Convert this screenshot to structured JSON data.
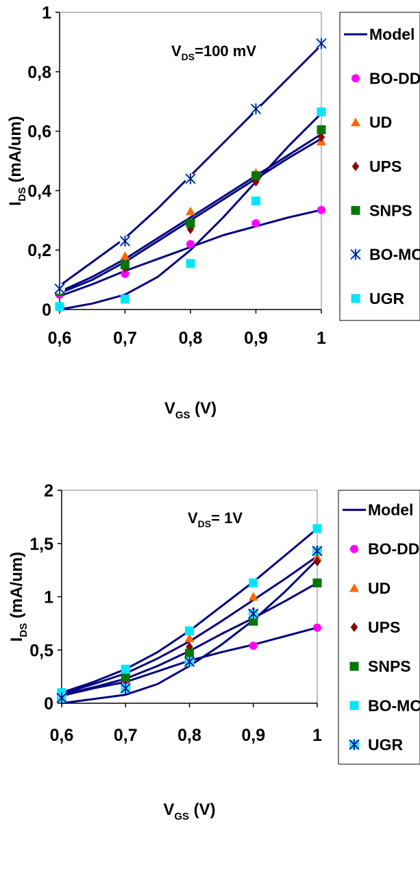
{
  "chart_data": [
    {
      "type": "line",
      "annotation": {
        "main": "V",
        "sub": "DS",
        "rest": "=100 mV"
      },
      "xlabel": {
        "main": "V",
        "sub": "GS",
        "rest": " (V)"
      },
      "ylabel": {
        "main": "I",
        "sub": "DS",
        "rest": " (mA/um)"
      },
      "xlim": [
        0.6,
        1.0
      ],
      "ylim": [
        0,
        1
      ],
      "x_ticks": [
        "0,6",
        "0,7",
        "0,8",
        "0,9",
        "1"
      ],
      "y_ticks": [
        "0",
        "0,2",
        "0,4",
        "0,6",
        "0,8",
        "1"
      ],
      "legend_position": "right",
      "legend": [
        "Model",
        "BO-DD",
        "UD",
        "UPS",
        "SNPS",
        "BO-MC",
        "UGR"
      ],
      "model_curves": [
        {
          "x": [
            0.6,
            0.65,
            0.7,
            0.75,
            0.8,
            0.85,
            0.9,
            0.95,
            1.0
          ],
          "y": [
            0.08,
            0.16,
            0.24,
            0.34,
            0.45,
            0.56,
            0.67,
            0.78,
            0.89
          ]
        },
        {
          "x": [
            0.6,
            0.65,
            0.7,
            0.75,
            0.8,
            0.85,
            0.9,
            0.95,
            1.0
          ],
          "y": [
            0.06,
            0.11,
            0.17,
            0.24,
            0.31,
            0.38,
            0.45,
            0.52,
            0.59
          ]
        },
        {
          "x": [
            0.6,
            0.65,
            0.7,
            0.75,
            0.8,
            0.85,
            0.9,
            0.95,
            1.0
          ],
          "y": [
            0.055,
            0.1,
            0.16,
            0.23,
            0.3,
            0.37,
            0.44,
            0.51,
            0.575
          ]
        },
        {
          "x": [
            0.6,
            0.65,
            0.7,
            0.75,
            0.8,
            0.85,
            0.9,
            0.95,
            1.0
          ],
          "y": [
            0.045,
            0.085,
            0.13,
            0.17,
            0.21,
            0.25,
            0.28,
            0.31,
            0.335
          ]
        },
        {
          "x": [
            0.6,
            0.65,
            0.7,
            0.75,
            0.8,
            0.85,
            0.9,
            0.95,
            1.0
          ],
          "y": [
            0.0,
            0.02,
            0.05,
            0.11,
            0.2,
            0.31,
            0.43,
            0.55,
            0.66
          ]
        }
      ],
      "series": [
        {
          "name": "BO-DD",
          "color": "#ff00ff",
          "marker": "circle",
          "x": [
            0.6,
            0.7,
            0.8,
            0.9,
            1.0
          ],
          "y": [
            0.05,
            0.12,
            0.22,
            0.29,
            0.335
          ]
        },
        {
          "name": "UD",
          "color": "#ff6600",
          "marker": "triangle",
          "x": [
            0.6,
            0.7,
            0.8,
            0.9,
            1.0
          ],
          "y": [
            0.06,
            0.18,
            0.33,
            0.46,
            0.565
          ]
        },
        {
          "name": "UPS",
          "color": "#8b0000",
          "marker": "diamond",
          "x": [
            0.6,
            0.7,
            0.8,
            0.9,
            1.0
          ],
          "y": [
            0.06,
            0.14,
            0.27,
            0.43,
            0.58
          ]
        },
        {
          "name": "SNPS",
          "color": "#007700",
          "marker": "square",
          "x": [
            0.6,
            0.7,
            0.8,
            0.9,
            1.0
          ],
          "y": [
            0.06,
            0.15,
            0.29,
            0.45,
            0.605
          ]
        },
        {
          "name": "BO-MC",
          "color": "#0000aa",
          "marker": "asterisk",
          "x": [
            0.6,
            0.7,
            0.8,
            0.9,
            1.0
          ],
          "y": [
            0.07,
            0.23,
            0.44,
            0.675,
            0.895
          ]
        },
        {
          "name": "UGR",
          "color": "#00e5ff",
          "marker": "square",
          "x": [
            0.6,
            0.7,
            0.8,
            0.9,
            1.0
          ],
          "y": [
            0.01,
            0.035,
            0.155,
            0.365,
            0.665
          ]
        }
      ]
    },
    {
      "type": "line",
      "annotation": {
        "main": "V",
        "sub": "DS",
        "rest": "= 1V"
      },
      "xlabel": {
        "main": "V",
        "sub": "GS",
        "rest": " (V)"
      },
      "ylabel": {
        "main": "I",
        "sub": "DS",
        "rest": " (mA/um)"
      },
      "xlim": [
        0.6,
        1.0
      ],
      "ylim": [
        0,
        2
      ],
      "x_ticks": [
        "0,6",
        "0,7",
        "0,8",
        "0,9",
        "1"
      ],
      "y_ticks": [
        "0",
        "0,5",
        "1",
        "1,5",
        "2"
      ],
      "legend_position": "right",
      "legend": [
        "Model",
        "BO-DD",
        "UD",
        "UPS",
        "SNPS",
        "BO-MC",
        "UGR"
      ],
      "model_curves": [
        {
          "x": [
            0.6,
            0.65,
            0.7,
            0.75,
            0.8,
            0.85,
            0.9,
            0.95,
            1.0
          ],
          "y": [
            0.1,
            0.2,
            0.32,
            0.48,
            0.68,
            0.91,
            1.14,
            1.39,
            1.64
          ]
        },
        {
          "x": [
            0.6,
            0.65,
            0.7,
            0.75,
            0.8,
            0.85,
            0.9,
            0.95,
            1.0
          ],
          "y": [
            0.09,
            0.18,
            0.28,
            0.42,
            0.58,
            0.77,
            0.97,
            1.17,
            1.38
          ]
        },
        {
          "x": [
            0.6,
            0.65,
            0.7,
            0.75,
            0.8,
            0.85,
            0.9,
            0.95,
            1.0
          ],
          "y": [
            0.08,
            0.15,
            0.23,
            0.35,
            0.49,
            0.65,
            0.8,
            0.96,
            1.13
          ]
        },
        {
          "x": [
            0.6,
            0.65,
            0.7,
            0.75,
            0.8,
            0.85,
            0.9,
            0.95,
            1.0
          ],
          "y": [
            0.07,
            0.14,
            0.2,
            0.3,
            0.4,
            0.48,
            0.55,
            0.63,
            0.71
          ]
        },
        {
          "x": [
            0.6,
            0.65,
            0.7,
            0.75,
            0.8,
            0.85,
            0.9,
            0.95,
            1.0
          ],
          "y": [
            0.0,
            0.04,
            0.08,
            0.18,
            0.35,
            0.55,
            0.78,
            1.05,
            1.35
          ]
        }
      ],
      "series": [
        {
          "name": "BO-DD",
          "color": "#ff00ff",
          "marker": "circle",
          "x": [
            0.6,
            0.7,
            0.8,
            0.9,
            1.0
          ],
          "y": [
            0.06,
            0.2,
            0.47,
            0.54,
            0.71
          ]
        },
        {
          "name": "UD",
          "color": "#ff6600",
          "marker": "triangle",
          "x": [
            0.6,
            0.7,
            0.8,
            0.9,
            1.0
          ],
          "y": [
            0.08,
            0.26,
            0.61,
            1.0,
            1.37
          ]
        },
        {
          "name": "UPS",
          "color": "#8b0000",
          "marker": "diamond",
          "x": [
            0.6,
            0.7,
            0.8,
            0.9,
            1.0
          ],
          "y": [
            0.07,
            0.22,
            0.53,
            0.86,
            1.33
          ]
        },
        {
          "name": "SNPS",
          "color": "#007700",
          "marker": "square",
          "x": [
            0.6,
            0.7,
            0.8,
            0.9,
            1.0
          ],
          "y": [
            0.07,
            0.24,
            0.47,
            0.77,
            1.13
          ]
        },
        {
          "name": "BO-MC",
          "color": "#00e5ff",
          "marker": "square",
          "x": [
            0.6,
            0.7,
            0.8,
            0.9,
            1.0
          ],
          "y": [
            0.1,
            0.32,
            0.68,
            1.13,
            1.64
          ]
        },
        {
          "name": "UGR",
          "color": "#00bcd4",
          "marker": "asterisk-square",
          "x": [
            0.6,
            0.7,
            0.8,
            0.9,
            1.0
          ],
          "y": [
            0.05,
            0.14,
            0.39,
            0.84,
            1.43
          ]
        }
      ]
    }
  ]
}
